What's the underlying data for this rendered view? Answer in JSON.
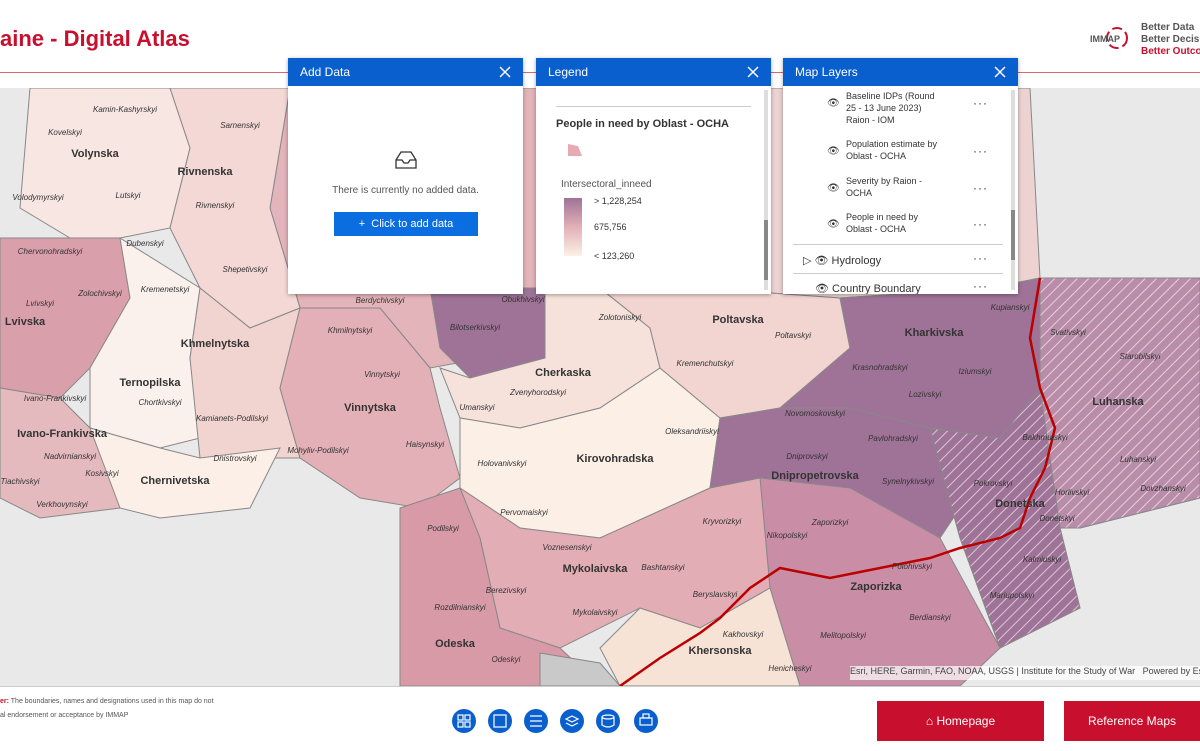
{
  "header": {
    "title": "aine - Digital Atlas",
    "logo": "IMMAP",
    "taglines": [
      "Better Data",
      "Better Decisions",
      "Better Outcomes"
    ]
  },
  "add_data": {
    "title": "Add Data",
    "message": "There is currently no added data.",
    "button": "Click to add data"
  },
  "legend": {
    "title": "Legend",
    "layer": "People in need by Oblast - OCHA",
    "field": "Intersectoral_inneed",
    "items": [
      "> 1,228,254",
      "675,756",
      "< 123,260"
    ]
  },
  "map_layers": {
    "title": "Map Layers",
    "items": [
      "Baseline IDPs (Round 25 - 13 June 2023) Raion - IOM",
      "Population estimate by Oblast - OCHA",
      "Severity by Raion - OCHA",
      "People in need by Oblast - OCHA"
    ],
    "groups": [
      "Hydrology",
      "Country Boundary"
    ]
  },
  "map": {
    "oblast_labels": [
      "Volynska",
      "Rivnenska",
      "Lvivska",
      "Ternopilska",
      "Khmelnytska",
      "Ivano-Frankivska",
      "Chernivetska",
      "Vinnytska",
      "Cherkaska",
      "Kirovohradska",
      "Poltavska",
      "Kharkivska",
      "Dnipropetrovska",
      "Donetska",
      "Luhanska",
      "Zaporizka",
      "Mykolaivska",
      "Khersonska",
      "Odeska"
    ],
    "raion_labels": [
      "Kamin-Kashyrskyi",
      "Kovelskyi",
      "Sarnenskyi",
      "Volodymyrskyi",
      "Lutskyi",
      "Rivnenskyi",
      "Dubenskyi",
      "Chervonohradskyi",
      "Shepetivskyi",
      "Zolochivskyi",
      "Kremenetskyi",
      "Lvivskyi",
      "Chortkivskyi",
      "Ivano-Frankivskyi",
      "Kamianets-Podilskyi",
      "Dnistrovskyi",
      "Nadvirnianskyi",
      "Kosivskyi",
      "Verkhovynskyi",
      "Khmilnytskyi",
      "Vinnytskyi",
      "Haisynskyi",
      "Mohyliv-Podilskyi",
      "Berdychivskyi",
      "Bilotserkivskyi",
      "Obukhivskyi",
      "Umanskyi",
      "Zvenyhorodskyi",
      "Zolotoniskyi",
      "Kremenchutskyi",
      "Poltavskyi",
      "Oleksandriiskyi",
      "Holovanivskyi",
      "Kupianskyi",
      "Krasnohradskyi",
      "Iziumskyi",
      "Lozivskyi",
      "Svativskyi",
      "Starobilskyi",
      "Novomoskovskyi",
      "Pavlohradskyi",
      "Dniprovskyi",
      "Synelnykivskyi",
      "Bakhmutskyi",
      "Luhanskyi",
      "Pokrovskyi",
      "Horlivskyi",
      "Dovzhanskyi",
      "Donetskyi",
      "Kryvorizkyi",
      "Nikopolskyi",
      "Zaporizkyi",
      "Kalmiuskyi",
      "Polohivskyi",
      "Mariupolskyi",
      "Berdianskyi",
      "Melitopolskyi",
      "Podilskyi",
      "Pervomaiskyi",
      "Voznesenskyi",
      "Bashtanskyi",
      "Berezivskyi",
      "Mykolaivskyi",
      "Rozdilnianskyi",
      "Beryslavskyi",
      "Kakhovskyi",
      "Odeskyi",
      "Henicheskyi",
      "Tiachivskyi"
    ],
    "attribution": "Esri, HERE, Garmin, FAO, NOAA, USGS | Institute for the Study of War",
    "powered": "Powered by Esri"
  },
  "footer": {
    "disclaimer": [
      "er:",
      "The boundaries, names and designations used in this map do not",
      "al endorsement or acceptance by IMMAP"
    ],
    "buttons": [
      "Homepage",
      "Reference Maps"
    ]
  }
}
